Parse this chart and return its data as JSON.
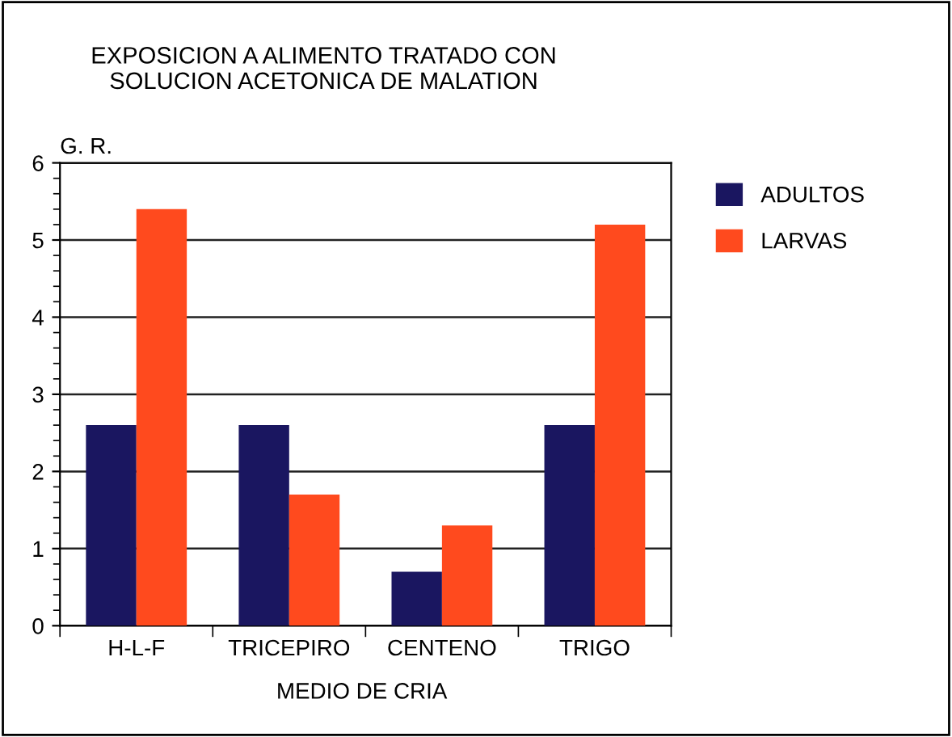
{
  "chart_data": {
    "type": "bar",
    "title": "EXPOSICION A ALIMENTO TRATADO CON\nSOLUCION ACETONICA DE MALATION",
    "categories": [
      "H-L-F",
      "TRICEPIRO",
      "CENTENO",
      "TRIGO"
    ],
    "series": [
      {
        "name": "ADULTOS",
        "color": "#1a1660",
        "values": [
          2.6,
          2.6,
          0.7,
          2.6
        ]
      },
      {
        "name": "LARVAS",
        "color": "#ff4a1e",
        "values": [
          5.4,
          1.7,
          1.3,
          5.2
        ]
      }
    ],
    "xlabel": "MEDIO DE CRIA",
    "ylabel": "G. R.",
    "ylim": [
      0,
      6
    ],
    "yticks": [
      0,
      1,
      2,
      3,
      4,
      5,
      6
    ],
    "grid": "y",
    "legend": "right"
  }
}
